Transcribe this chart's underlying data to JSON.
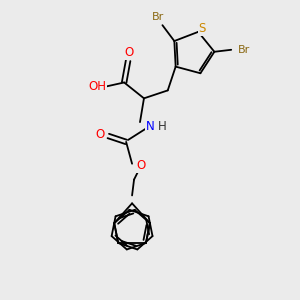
{
  "background_color": "#ebebeb",
  "atom_colors": {
    "C": "#000000",
    "H": "#000000",
    "O": "#ff0000",
    "N": "#0000ff",
    "S": "#cc8800",
    "Br": "#8B6914"
  },
  "bond_color": "#000000",
  "figsize": [
    3.0,
    3.0
  ],
  "dpi": 100
}
